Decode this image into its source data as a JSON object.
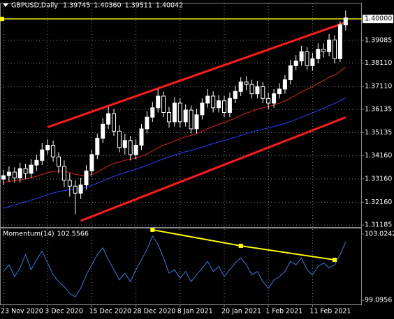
{
  "chart_data": [
    {
      "type": "candlestick",
      "title": "GBPUSD,Daily",
      "header_labels": [
        "1.39745",
        "1.40360",
        "1.39511",
        "1.40042"
      ],
      "open": [
        1.3315,
        1.333,
        1.3345,
        1.332,
        1.336,
        1.334,
        1.3375,
        1.3395,
        1.344,
        1.346,
        1.341,
        1.337,
        1.331,
        1.3285,
        1.3255,
        1.329,
        1.335,
        1.342,
        1.349,
        1.355,
        1.3595,
        1.352,
        1.345,
        1.348,
        1.342,
        1.346,
        1.353,
        1.358,
        1.362,
        1.367,
        1.36,
        1.356,
        1.364,
        1.356,
        1.361,
        1.353,
        1.359,
        1.364,
        1.367,
        1.362,
        1.365,
        1.36,
        1.366,
        1.369,
        1.373,
        1.372,
        1.368,
        1.371,
        1.366,
        1.364,
        1.368,
        1.37,
        1.374,
        1.38,
        1.382,
        1.386,
        1.38,
        1.383,
        1.387,
        1.386,
        1.391,
        1.383,
        1.39745
      ],
      "high": [
        1.3355,
        1.337,
        1.3365,
        1.3385,
        1.338,
        1.34,
        1.342,
        1.347,
        1.3485,
        1.348,
        1.343,
        1.3395,
        1.334,
        1.331,
        1.332,
        1.3375,
        1.344,
        1.351,
        1.3575,
        1.3625,
        1.3615,
        1.3545,
        1.351,
        1.35,
        1.3485,
        1.355,
        1.3605,
        1.3645,
        1.37,
        1.369,
        1.3625,
        1.3665,
        1.366,
        1.3635,
        1.363,
        1.3615,
        1.366,
        1.37,
        1.369,
        1.3675,
        1.367,
        1.3685,
        1.3715,
        1.375,
        1.3755,
        1.374,
        1.3735,
        1.373,
        1.3685,
        1.37,
        1.3725,
        1.376,
        1.3825,
        1.3845,
        1.3885,
        1.388,
        1.3855,
        1.3895,
        1.3895,
        1.3935,
        1.393,
        1.399,
        1.4036
      ],
      "low": [
        1.329,
        1.3305,
        1.33,
        1.33,
        1.3315,
        1.332,
        1.335,
        1.3375,
        1.342,
        1.339,
        1.334,
        1.328,
        1.324,
        1.3165,
        1.323,
        1.327,
        1.333,
        1.34,
        1.347,
        1.353,
        1.35,
        1.343,
        1.342,
        1.3395,
        1.34,
        1.344,
        1.351,
        1.356,
        1.36,
        1.358,
        1.3535,
        1.354,
        1.3535,
        1.354,
        1.351,
        1.351,
        1.357,
        1.362,
        1.36,
        1.36,
        1.358,
        1.358,
        1.364,
        1.367,
        1.3695,
        1.366,
        1.366,
        1.364,
        1.3615,
        1.362,
        1.366,
        1.368,
        1.372,
        1.378,
        1.38,
        1.378,
        1.378,
        1.381,
        1.3835,
        1.384,
        1.381,
        1.3815,
        1.39511
      ],
      "close": [
        1.333,
        1.3345,
        1.332,
        1.336,
        1.334,
        1.3375,
        1.3395,
        1.344,
        1.346,
        1.341,
        1.337,
        1.331,
        1.3285,
        1.3255,
        1.329,
        1.335,
        1.342,
        1.349,
        1.355,
        1.3595,
        1.352,
        1.345,
        1.348,
        1.342,
        1.346,
        1.353,
        1.358,
        1.362,
        1.367,
        1.36,
        1.356,
        1.364,
        1.356,
        1.361,
        1.353,
        1.359,
        1.364,
        1.367,
        1.362,
        1.365,
        1.36,
        1.366,
        1.369,
        1.373,
        1.372,
        1.368,
        1.371,
        1.366,
        1.364,
        1.368,
        1.37,
        1.374,
        1.38,
        1.382,
        1.386,
        1.38,
        1.383,
        1.387,
        1.386,
        1.391,
        1.383,
        1.39745,
        1.40042
      ],
      "up_color": "#ffffff",
      "down_color": "#000000",
      "lines": [
        {
          "color": "#2a3cff",
          "values": [
            1.319,
            1.3197,
            1.3204,
            1.3211,
            1.3218,
            1.3225,
            1.3232,
            1.324,
            1.3248,
            1.3256,
            1.3262,
            1.3266,
            1.327,
            1.3272,
            1.3275,
            1.328,
            1.3288,
            1.3297,
            1.3307,
            1.3318,
            1.3327,
            1.3335,
            1.3343,
            1.335,
            1.3357,
            1.3365,
            1.3374,
            1.3383,
            1.3393,
            1.3402,
            1.341,
            1.3418,
            1.3425,
            1.3432,
            1.3438,
            1.3445,
            1.3452,
            1.346,
            1.3467,
            1.3474,
            1.348,
            1.3487,
            1.3494,
            1.3502,
            1.351,
            1.3517,
            1.3523,
            1.3529,
            1.3534,
            1.354,
            1.3546,
            1.3553,
            1.3561,
            1.357,
            1.358,
            1.3589,
            1.3598,
            1.3608,
            1.3618,
            1.3629,
            1.3638,
            1.365,
            1.3663
          ]
        },
        {
          "color": "#e02020",
          "values": [
            1.33,
            1.3305,
            1.3308,
            1.3312,
            1.3316,
            1.3321,
            1.3327,
            1.3335,
            1.3343,
            1.3348,
            1.335,
            1.3348,
            1.3343,
            1.3336,
            1.3331,
            1.333,
            1.3335,
            1.3345,
            1.3358,
            1.3372,
            1.3382,
            1.3388,
            1.3395,
            1.34,
            1.3405,
            1.3413,
            1.3423,
            1.3435,
            1.3449,
            1.346,
            1.3468,
            1.3479,
            1.3487,
            1.3496,
            1.3502,
            1.351,
            1.352,
            1.3531,
            1.354,
            1.355,
            1.3557,
            1.3566,
            1.3576,
            1.3587,
            1.3597,
            1.3605,
            1.3614,
            1.362,
            1.3625,
            1.3632,
            1.364,
            1.3649,
            1.3661,
            1.3674,
            1.3688,
            1.3699,
            1.3711,
            1.3724,
            1.3736,
            1.375,
            1.376,
            1.3776,
            1.3794
          ]
        }
      ],
      "trendlines": [
        {
          "color": "#ff1a1a",
          "values": [
            null,
            null,
            null,
            null,
            null,
            null,
            null,
            null,
            1.3537,
            null,
            null,
            null,
            null,
            null,
            null,
            null,
            null,
            null,
            null,
            null,
            null,
            null,
            null,
            null,
            null,
            null,
            null,
            null,
            null,
            null,
            null,
            null,
            null,
            null,
            null,
            null,
            null,
            null,
            null,
            null,
            null,
            null,
            null,
            null,
            null,
            null,
            null,
            null,
            null,
            null,
            null,
            null,
            null,
            null,
            null,
            null,
            null,
            null,
            null,
            null,
            null,
            null,
            1.3985
          ]
        },
        {
          "color": "#ff1a1a",
          "values": [
            null,
            null,
            null,
            null,
            null,
            null,
            null,
            null,
            null,
            null,
            null,
            null,
            null,
            null,
            1.3137,
            null,
            null,
            null,
            null,
            null,
            null,
            null,
            null,
            null,
            null,
            null,
            null,
            null,
            null,
            null,
            null,
            null,
            null,
            null,
            null,
            null,
            null,
            null,
            null,
            null,
            null,
            null,
            null,
            null,
            null,
            null,
            null,
            null,
            null,
            null,
            null,
            null,
            null,
            null,
            null,
            null,
            null,
            null,
            null,
            null,
            null,
            null,
            1.3579
          ]
        }
      ],
      "level": {
        "value": 1.4,
        "label": "1.40000",
        "color": "#ffff00"
      },
      "ylim": [
        1.311,
        1.4066
      ],
      "yticks": [
        1.39085,
        {
          "value": 1.3811,
          "label": "1.38110"
        },
        {
          "value": 1.3711,
          "label": "1.37110"
        },
        1.36135,
        1.35135,
        {
          "value": 1.3416,
          "label": "1.34160"
        },
        {
          "value": 1.3316,
          "label": "1.33160"
        },
        {
          "value": 1.3216,
          "label": "1.32160"
        },
        1.31185
      ],
      "grid": true
    },
    {
      "type": "line",
      "title": "Momentum(14)",
      "categories": [
        "23 Nov 2020",
        null,
        null,
        null,
        null,
        null,
        null,
        null,
        "3 Dec 2020",
        null,
        null,
        null,
        null,
        null,
        null,
        null,
        "15 Dec 2020",
        null,
        null,
        null,
        null,
        null,
        null,
        null,
        "28 Dec 2020",
        null,
        null,
        null,
        null,
        null,
        null,
        null,
        "8 Jan 2021",
        null,
        null,
        null,
        null,
        null,
        null,
        null,
        "20 Jan 2021",
        null,
        null,
        null,
        null,
        null,
        null,
        null,
        "1 Feb 2021",
        null,
        null,
        null,
        null,
        null,
        null,
        null,
        "11 Feb 2021",
        null,
        null,
        null,
        null,
        null,
        null
      ],
      "series": [
        {
          "color": "#2f7de1",
          "values": [
            100.8,
            101.2,
            100.5,
            101.0,
            101.8,
            100.9,
            101.5,
            102.0,
            101.3,
            100.6,
            100.2,
            99.9,
            99.5,
            99.3,
            99.8,
            100.6,
            101.2,
            101.8,
            102.2,
            101.5,
            100.9,
            100.3,
            100.7,
            100.2,
            100.9,
            101.5,
            102.1,
            102.9,
            102.4,
            101.6,
            100.7,
            100.9,
            100.4,
            100.8,
            100.2,
            100.6,
            101.0,
            101.4,
            100.8,
            101.1,
            100.5,
            100.9,
            101.3,
            101.6,
            101.2,
            100.6,
            100.8,
            100.2,
            99.8,
            100.3,
            100.5,
            100.8,
            101.4,
            101.2,
            101.6,
            100.9,
            100.6,
            101.1,
            101.3,
            101.0,
            101.2,
            101.8,
            102.5566
          ]
        }
      ],
      "trendline": {
        "color": "#ffff00",
        "values": [
          null,
          null,
          null,
          null,
          null,
          null,
          null,
          null,
          null,
          null,
          null,
          null,
          null,
          null,
          null,
          null,
          null,
          null,
          null,
          null,
          null,
          null,
          null,
          null,
          null,
          null,
          null,
          103.27,
          null,
          null,
          null,
          null,
          null,
          null,
          null,
          null,
          null,
          null,
          null,
          null,
          null,
          null,
          null,
          102.32,
          null,
          null,
          null,
          null,
          null,
          null,
          null,
          null,
          null,
          null,
          null,
          null,
          null,
          null,
          null,
          null,
          101.49,
          null,
          null
        ]
      },
      "ylim": [
        98.85,
        103.35
      ],
      "yticks": [
        103.0242,
        99.0956
      ]
    }
  ]
}
